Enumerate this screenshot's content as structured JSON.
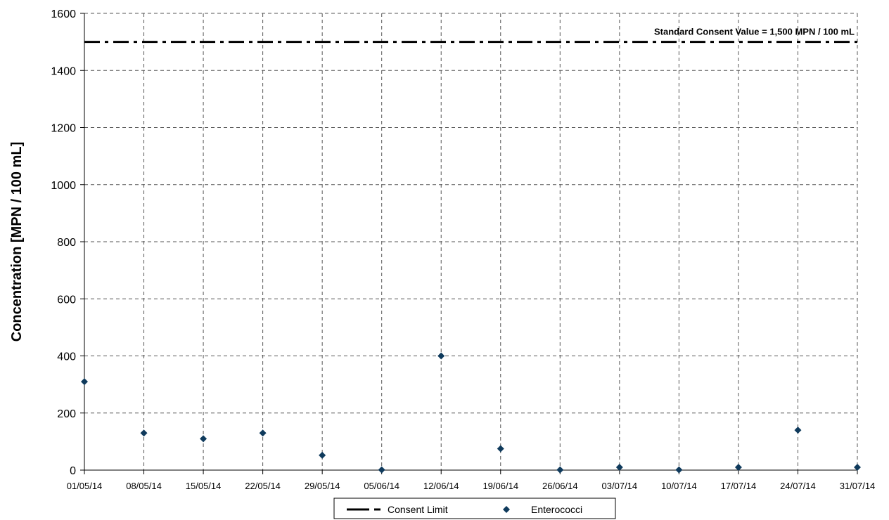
{
  "chart_data": {
    "type": "scatter",
    "ylabel": "Concentration [MPN / 100 mL]",
    "xlabel": "",
    "ylim": [
      0,
      1600
    ],
    "yticks": [
      0,
      200,
      400,
      600,
      800,
      1000,
      1200,
      1400,
      1600
    ],
    "x_tick_labels": [
      "01/05/14",
      "08/05/14",
      "15/05/14",
      "22/05/14",
      "29/05/14",
      "05/06/14",
      "12/06/14",
      "19/06/14",
      "26/06/14",
      "03/07/14",
      "10/07/14",
      "17/07/14",
      "24/07/14",
      "31/07/14"
    ],
    "xlim": [
      "01/05/14",
      "31/07/14"
    ],
    "grid": true,
    "legend_placement": "bottom-center",
    "series": [
      {
        "name": "Enterococci",
        "marker": "diamond",
        "color": "#0f3a5c",
        "points": [
          {
            "x": "01/05/14",
            "y": 310
          },
          {
            "x": "08/05/14",
            "y": 130
          },
          {
            "x": "15/05/14",
            "y": 110
          },
          {
            "x": "22/05/14",
            "y": 130
          },
          {
            "x": "29/05/14",
            "y": 52
          },
          {
            "x": "05/06/14",
            "y": 1
          },
          {
            "x": "12/06/14",
            "y": 400
          },
          {
            "x": "19/06/14",
            "y": 75
          },
          {
            "x": "26/06/14",
            "y": 1
          },
          {
            "x": "03/07/14",
            "y": 10
          },
          {
            "x": "10/07/14",
            "y": 1
          },
          {
            "x": "17/07/14",
            "y": 10
          },
          {
            "x": "24/07/14",
            "y": 140
          },
          {
            "x": "31/07/14",
            "y": 10
          }
        ]
      },
      {
        "name": "Consent Limit",
        "style": "dash-dot",
        "color": "#000000",
        "y": 1500
      }
    ],
    "annotations": [
      {
        "text": "Standard Consent Value = 1,500 MPN / 100 mL",
        "y": 1500,
        "placement": "top-right"
      }
    ]
  }
}
